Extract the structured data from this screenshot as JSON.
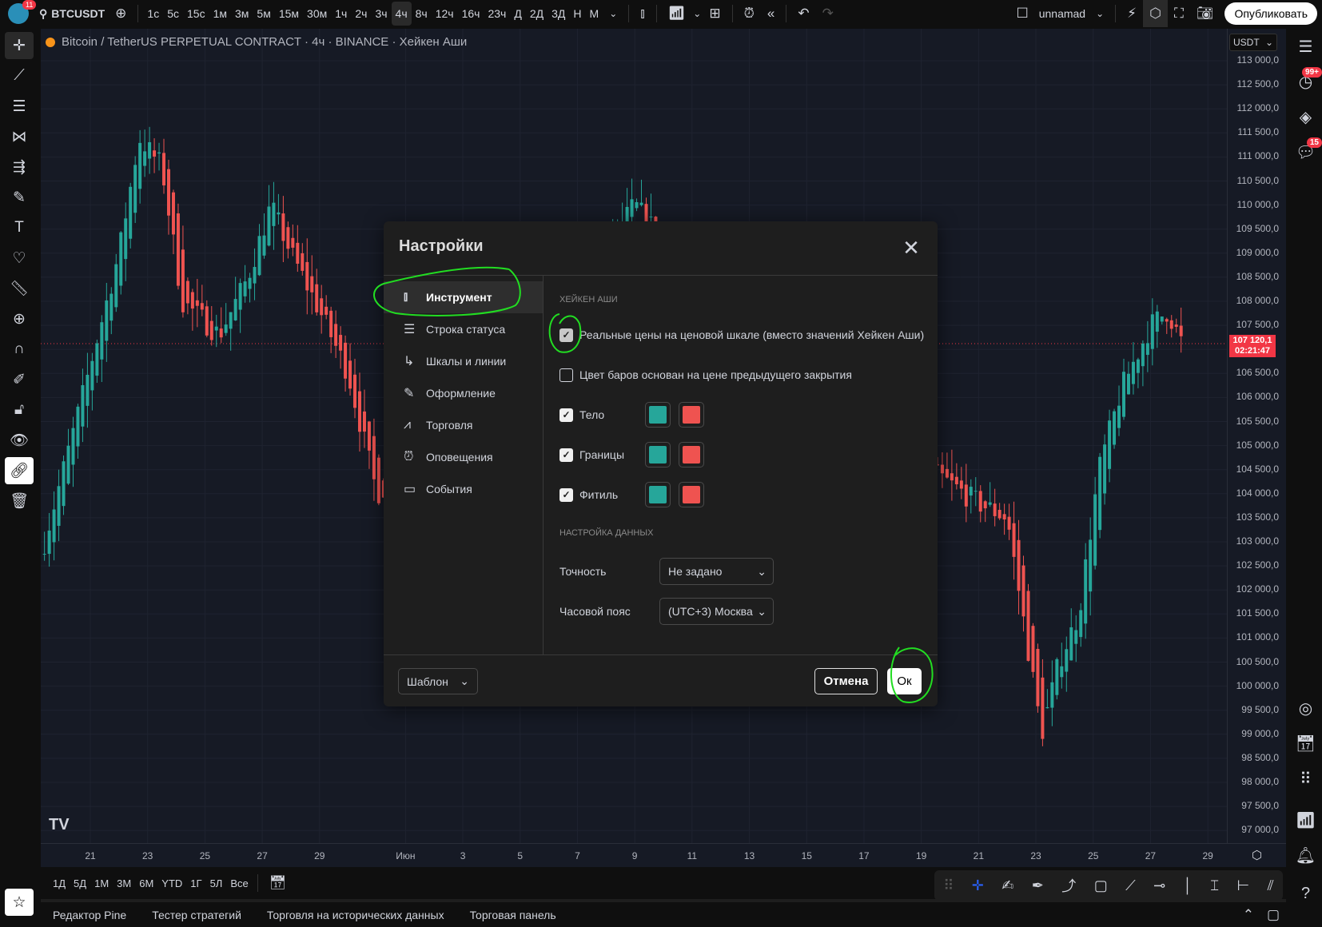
{
  "topbar": {
    "notif_count": "11",
    "symbol": "BTCUSDT",
    "intervals": [
      "1с",
      "5с",
      "15с",
      "1м",
      "3м",
      "5м",
      "15м",
      "30м",
      "1ч",
      "2ч",
      "3ч",
      "4ч",
      "8ч",
      "12ч",
      "16ч",
      "23ч",
      "Д",
      "2Д",
      "3Д",
      "Н",
      "М"
    ],
    "active_interval": "4ч",
    "layout_name": "unnamad",
    "publish_label": "Опубликовать"
  },
  "chart": {
    "title": "Bitcoin / TetherUS PERPETUAL CONTRACT · 4ч · BINANCE · Хейкен Аши",
    "currency": "USDT",
    "price_labels": [
      "113 000,0",
      "112 500,0",
      "112 000,0",
      "111 500,0",
      "111 000,0",
      "110 500,0",
      "110 000,0",
      "109 500,0",
      "109 000,0",
      "108 500,0",
      "108 000,0",
      "107 500,0",
      "106 500,0",
      "106 000,0",
      "105 500,0",
      "105 000,0",
      "104 500,0",
      "104 000,0",
      "103 500,0",
      "103 000,0",
      "102 500,0",
      "102 000,0",
      "101 500,0",
      "101 000,0",
      "100 500,0",
      "100 000,0",
      "99 500,0",
      "99 000,0",
      "98 500,0",
      "98 000,0",
      "97 500,0",
      "97 000,0"
    ],
    "last_price": "107 120,1",
    "countdown": "02:21:47",
    "time_labels": [
      "21",
      "23",
      "25",
      "27",
      "29",
      "Июн",
      "3",
      "5",
      "7",
      "9",
      "11",
      "13",
      "15",
      "17",
      "19",
      "21",
      "23",
      "25",
      "27",
      "29"
    ],
    "up_color": "#26a69a",
    "down_color": "#ef5350"
  },
  "rightbar": {
    "alerts_badge": "99+",
    "chat_badge": "15"
  },
  "rangebar": {
    "ranges": [
      "1Д",
      "5Д",
      "1М",
      "3М",
      "6М",
      "YTD",
      "1Г",
      "5Л",
      "Все"
    ]
  },
  "bottom": {
    "tabs": [
      "Редактор Pine",
      "Тестер стратегий",
      "Торговля на исторических данных",
      "Торговая панель"
    ]
  },
  "dialog": {
    "title": "Настройки",
    "nav": [
      {
        "label": "Инструмент",
        "icon": "candles-icon",
        "selected": true
      },
      {
        "label": "Строка статуса",
        "icon": "status-line-icon"
      },
      {
        "label": "Шкалы и линии",
        "icon": "axes-icon"
      },
      {
        "label": "Оформление",
        "icon": "pencil-icon"
      },
      {
        "label": "Торговля",
        "icon": "trading-icon"
      },
      {
        "label": "Оповещения",
        "icon": "alarm-icon"
      },
      {
        "label": "События",
        "icon": "calendar-icon"
      }
    ],
    "section1": "Хейкен Аши",
    "real_prices": {
      "label": "Реальные цены на ценовой шкале (вместо значений Хейкен Аши)",
      "checked": true
    },
    "prev_close": {
      "label": "Цвет баров основан на цене предыдущего закрытия",
      "checked": false
    },
    "color_rows": [
      {
        "label": "Тело",
        "checked": true,
        "up": "#26a69a",
        "down": "#ef5350"
      },
      {
        "label": "Границы",
        "checked": true,
        "up": "#26a69a",
        "down": "#ef5350"
      },
      {
        "label": "Фитиль",
        "checked": true,
        "up": "#26a69a",
        "down": "#ef5350"
      }
    ],
    "section2": "Настройка данных",
    "precision": {
      "label": "Точность",
      "value": "Не задано"
    },
    "timezone": {
      "label": "Часовой пояс",
      "value": "(UTC+3) Москва"
    },
    "template_label": "Шаблон",
    "cancel_label": "Отмена",
    "ok_label": "Ок"
  }
}
